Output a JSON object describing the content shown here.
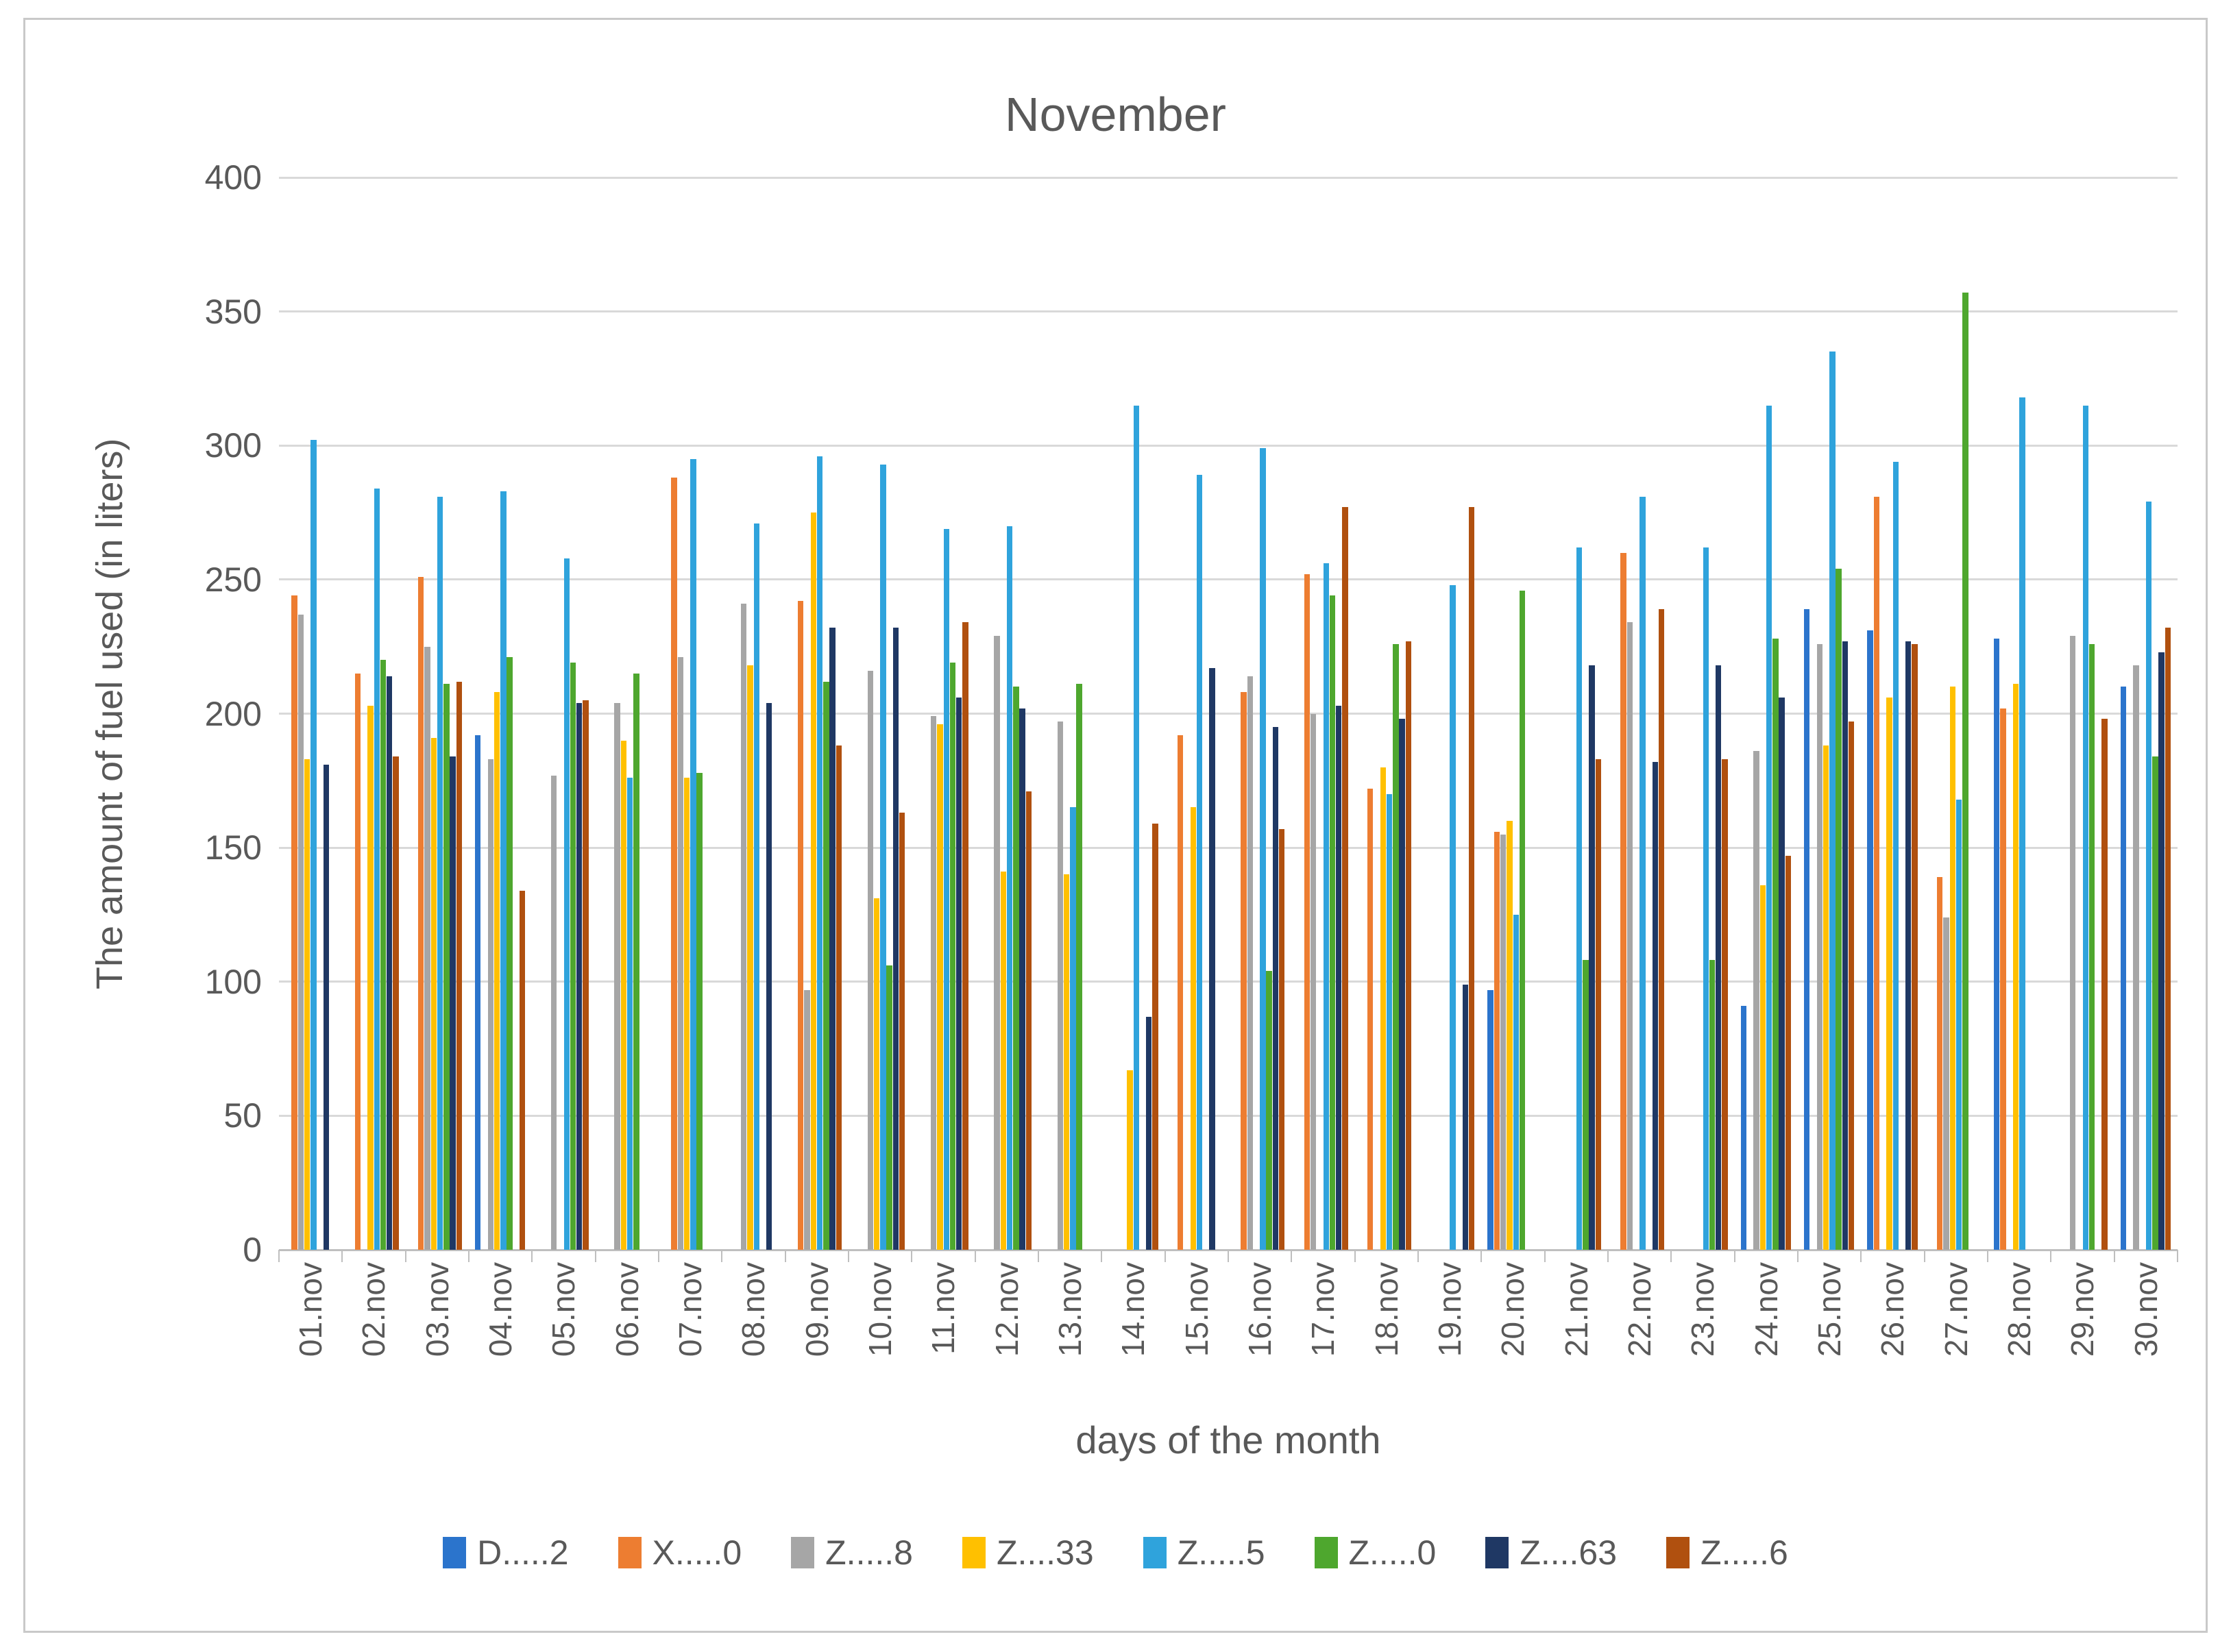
{
  "chart_data": {
    "type": "bar",
    "title": "November",
    "xlabel": "days of the month",
    "ylabel": "The amount of fuel used (in liters)",
    "ylim": [
      0,
      400
    ],
    "yticks": [
      0,
      50,
      100,
      150,
      200,
      250,
      300,
      350,
      400
    ],
    "grid": true,
    "legend_position": "bottom",
    "categories": [
      "01.nov",
      "02.nov",
      "03.nov",
      "04.nov",
      "05.nov",
      "06.nov",
      "07.nov",
      "08.nov",
      "09.nov",
      "10.nov",
      "11.nov",
      "12.nov",
      "13.nov",
      "14.nov",
      "15.nov",
      "16.nov",
      "17.nov",
      "18.nov",
      "19.nov",
      "20.nov",
      "21.nov",
      "22.nov",
      "23.nov",
      "24.nov",
      "25.nov",
      "26.nov",
      "27.nov",
      "28.nov",
      "29.nov",
      "30.nov"
    ],
    "series": [
      {
        "name": "D.....2",
        "color": "#2b74cc",
        "values": [
          null,
          null,
          null,
          192,
          null,
          null,
          null,
          null,
          null,
          null,
          null,
          null,
          null,
          null,
          null,
          null,
          null,
          null,
          null,
          97,
          null,
          null,
          null,
          91,
          239,
          231,
          null,
          228,
          null,
          210
        ]
      },
      {
        "name": "X.....0",
        "color": "#ed7d31",
        "values": [
          244,
          215,
          251,
          null,
          null,
          null,
          288,
          null,
          242,
          null,
          null,
          null,
          null,
          null,
          192,
          208,
          252,
          172,
          null,
          156,
          null,
          260,
          null,
          null,
          null,
          281,
          139,
          202,
          null,
          null
        ]
      },
      {
        "name": "Z.....8",
        "color": "#a6a6a6",
        "values": [
          237,
          null,
          225,
          183,
          177,
          204,
          221,
          241,
          97,
          216,
          199,
          229,
          197,
          null,
          null,
          214,
          200,
          null,
          null,
          155,
          null,
          234,
          null,
          186,
          226,
          null,
          124,
          null,
          229,
          218
        ]
      },
      {
        "name": "Z....33",
        "color": "#ffc000",
        "values": [
          183,
          203,
          191,
          208,
          null,
          190,
          176,
          218,
          275,
          131,
          196,
          141,
          140,
          67,
          165,
          null,
          null,
          180,
          null,
          160,
          null,
          null,
          null,
          136,
          188,
          206,
          210,
          211,
          null,
          null
        ]
      },
      {
        "name": "Z.....5",
        "color": "#2fa3dc",
        "values": [
          302,
          284,
          281,
          283,
          258,
          176,
          295,
          271,
          296,
          293,
          269,
          270,
          165,
          315,
          289,
          299,
          256,
          170,
          248,
          125,
          262,
          281,
          262,
          315,
          335,
          294,
          168,
          318,
          315,
          279
        ]
      },
      {
        "name": "Z.....0",
        "color": "#4ea72e",
        "values": [
          null,
          220,
          211,
          221,
          219,
          215,
          178,
          null,
          212,
          106,
          219,
          210,
          211,
          null,
          null,
          104,
          244,
          226,
          null,
          246,
          108,
          null,
          108,
          228,
          254,
          null,
          357,
          null,
          226,
          184
        ]
      },
      {
        "name": "Z....63",
        "color": "#1f3864",
        "values": [
          181,
          214,
          184,
          null,
          204,
          null,
          null,
          204,
          232,
          232,
          206,
          202,
          null,
          87,
          217,
          195,
          203,
          198,
          99,
          null,
          218,
          182,
          218,
          206,
          227,
          227,
          null,
          null,
          null,
          223
        ]
      },
      {
        "name": "Z.....6",
        "color": "#b0500f",
        "values": [
          null,
          184,
          212,
          134,
          205,
          null,
          null,
          null,
          188,
          163,
          234,
          171,
          null,
          159,
          null,
          157,
          277,
          227,
          277,
          null,
          183,
          239,
          183,
          147,
          197,
          226,
          null,
          null,
          198,
          232
        ]
      }
    ]
  }
}
